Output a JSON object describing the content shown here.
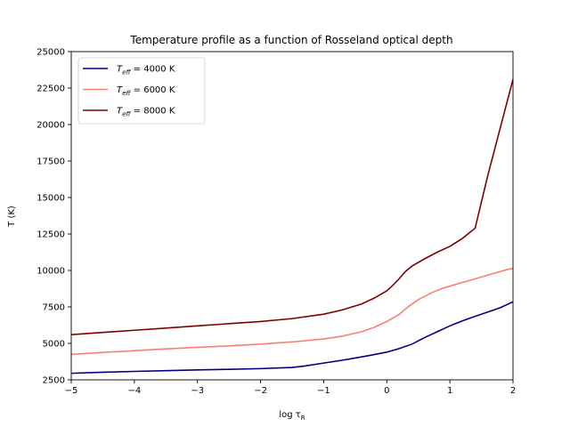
{
  "chart_data": {
    "type": "line",
    "title": "Temperature profile as a function of Rosseland optical depth",
    "xlabel": "log τ",
    "xlabel_sub": "R",
    "ylabel": "T (K)",
    "xlim": [
      -5,
      2
    ],
    "ylim": [
      2500,
      25000
    ],
    "xticks": [
      -5,
      -4,
      -3,
      -2,
      -1,
      0,
      1,
      2
    ],
    "yticks": [
      2500,
      5000,
      7500,
      10000,
      12500,
      15000,
      17500,
      20000,
      22500,
      25000
    ],
    "xtick_labels": [
      "−5",
      "−4",
      "−3",
      "−2",
      "−1",
      "0",
      "1",
      "2"
    ],
    "ytick_labels": [
      "2500",
      "5000",
      "7500",
      "10000",
      "12500",
      "15000",
      "17500",
      "20000",
      "22500",
      "25000"
    ],
    "grid": false,
    "legend_position": "upper-left",
    "series": [
      {
        "name": "T_eff = 4000 K",
        "legend_main": "T",
        "legend_sub": "eff",
        "legend_rest": " = 4000 K",
        "color": "#000080",
        "x": [
          -5,
          -4.5,
          -4,
          -3.5,
          -3,
          -2.5,
          -2,
          -1.5,
          -1.3,
          -1,
          -0.7,
          -0.5,
          -0.3,
          0,
          0.2,
          0.4,
          0.6,
          0.8,
          1.0,
          1.2,
          1.4,
          1.6,
          1.8,
          2.0
        ],
        "y": [
          2950,
          3020,
          3080,
          3130,
          3180,
          3220,
          3270,
          3350,
          3450,
          3650,
          3850,
          4000,
          4150,
          4400,
          4650,
          4950,
          5400,
          5800,
          6200,
          6550,
          6850,
          7150,
          7450,
          7850
        ]
      },
      {
        "name": "T_eff = 6000 K",
        "legend_main": "T",
        "legend_sub": "eff",
        "legend_rest": " = 6000 K",
        "color": "#fa8072",
        "x": [
          -5,
          -4.5,
          -4,
          -3.5,
          -3,
          -2.5,
          -2,
          -1.5,
          -1.0,
          -0.7,
          -0.4,
          -0.2,
          0,
          0.2,
          0.35,
          0.5,
          0.7,
          0.9,
          1.1,
          1.3,
          1.5,
          1.7,
          1.9,
          2.0
        ],
        "y": [
          4250,
          4380,
          4500,
          4620,
          4730,
          4830,
          4950,
          5100,
          5300,
          5500,
          5800,
          6100,
          6500,
          7000,
          7550,
          8000,
          8450,
          8800,
          9050,
          9300,
          9550,
          9800,
          10050,
          10150
        ]
      },
      {
        "name": "T_eff = 8000 K",
        "legend_main": "T",
        "legend_sub": "eff",
        "legend_rest": " = 8000 K",
        "color": "#800000",
        "x": [
          -5,
          -4.5,
          -4,
          -3.5,
          -3,
          -2.5,
          -2,
          -1.5,
          -1.0,
          -0.7,
          -0.4,
          -0.2,
          0,
          0.1,
          0.2,
          0.3,
          0.4,
          0.6,
          0.8,
          1.0,
          1.2,
          1.4,
          1.6,
          1.8,
          2.0
        ],
        "y": [
          5600,
          5750,
          5900,
          6050,
          6200,
          6350,
          6500,
          6700,
          7000,
          7300,
          7700,
          8100,
          8600,
          9000,
          9450,
          9950,
          10300,
          10800,
          11250,
          11650,
          12200,
          12900,
          16500,
          19800,
          23100
        ]
      }
    ]
  }
}
